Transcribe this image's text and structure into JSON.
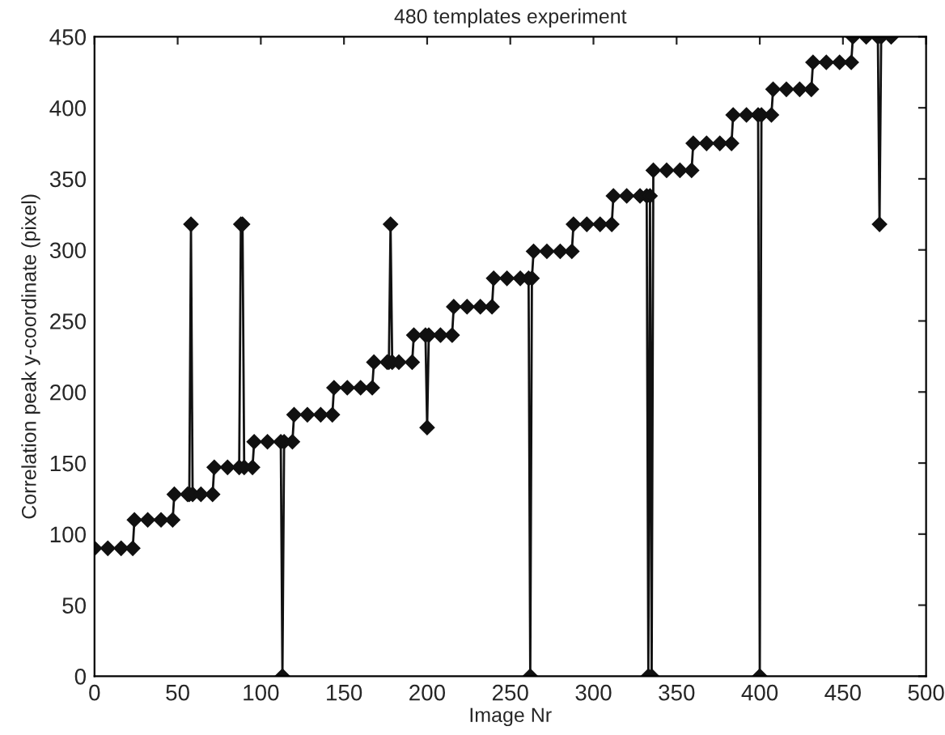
{
  "chart_data": {
    "type": "line",
    "title": "480 templates experiment",
    "xlabel": "Image Nr",
    "ylabel": "Correlation peak y-coordinate (pixel)",
    "xlim": [
      0,
      500
    ],
    "xticks": [
      0,
      50,
      100,
      150,
      200,
      250,
      300,
      350,
      400,
      450,
      500
    ],
    "ylim": [
      0,
      450
    ],
    "yticks": [
      0,
      50,
      100,
      150,
      200,
      250,
      300,
      350,
      400,
      450
    ],
    "marker": "diamond",
    "line_style": "solid",
    "grid": false,
    "legend": false,
    "series": [
      {
        "color": "#111111",
        "x": [
          0,
          8,
          16,
          23,
          24,
          32,
          40,
          47,
          48,
          56,
          57,
          58,
          59,
          64,
          71,
          72,
          80,
          87,
          88,
          89,
          90,
          95,
          96,
          104,
          112,
          113,
          114,
          119,
          120,
          128,
          136,
          143,
          144,
          152,
          160,
          167,
          168,
          176,
          177,
          178,
          179,
          183,
          191,
          192,
          199,
          200,
          201,
          208,
          215,
          216,
          224,
          232,
          239,
          240,
          248,
          256,
          261,
          262,
          263,
          264,
          272,
          280,
          287,
          288,
          296,
          304,
          311,
          312,
          320,
          328,
          332,
          333,
          334,
          335,
          336,
          344,
          352,
          359,
          360,
          368,
          376,
          383,
          384,
          392,
          399,
          400,
          401,
          407,
          408,
          416,
          424,
          431,
          432,
          440,
          448,
          455,
          456,
          464,
          471,
          472,
          473,
          479
        ],
        "values": [
          90,
          90,
          90,
          90,
          110,
          110,
          110,
          110,
          128,
          128,
          128,
          318,
          128,
          128,
          128,
          147,
          147,
          147,
          318,
          318,
          147,
          147,
          165,
          165,
          165,
          0,
          165,
          165,
          184,
          184,
          184,
          184,
          203,
          203,
          203,
          203,
          221,
          221,
          221,
          318,
          221,
          221,
          221,
          240,
          240,
          175,
          240,
          240,
          240,
          260,
          260,
          260,
          260,
          280,
          280,
          280,
          280,
          0,
          280,
          299,
          299,
          299,
          299,
          318,
          318,
          318,
          318,
          338,
          338,
          338,
          338,
          0,
          338,
          0,
          356,
          356,
          356,
          356,
          375,
          375,
          375,
          375,
          395,
          395,
          395,
          0,
          395,
          395,
          413,
          413,
          413,
          413,
          432,
          432,
          432,
          432,
          450,
          450,
          450,
          318,
          450,
          450
        ]
      }
    ]
  }
}
